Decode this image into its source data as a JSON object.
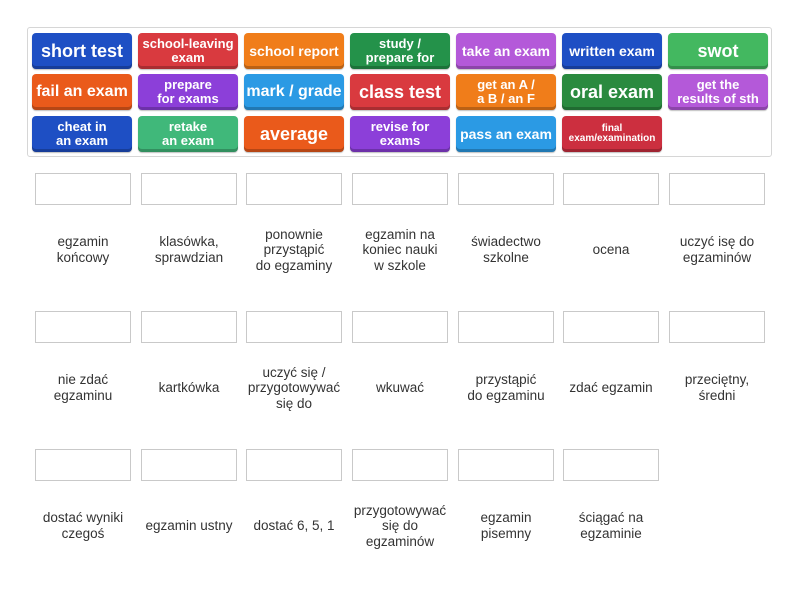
{
  "tiles": [
    {
      "label": "short test",
      "color": "#1e4fc4"
    },
    {
      "label": "school-leaving\nexam",
      "color": "#d93a3f"
    },
    {
      "label": "school report",
      "color": "#f07d1a"
    },
    {
      "label": "study /\nprepare for",
      "color": "#24924a"
    },
    {
      "label": "take an exam",
      "color": "#b459d9"
    },
    {
      "label": "written exam",
      "color": "#1e4fc4"
    },
    {
      "label": "swot",
      "color": "#43b860"
    },
    {
      "label": "fail an exam",
      "color": "#ea5a1b"
    },
    {
      "label": "prepare\nfor exams",
      "color": "#8c3fd9"
    },
    {
      "label": "mark / grade",
      "color": "#2b9ae4"
    },
    {
      "label": "class test",
      "color": "#d93a3f"
    },
    {
      "label": "get an A /\na B / an F",
      "color": "#f07d1a"
    },
    {
      "label": "oral exam",
      "color": "#2a8a3f"
    },
    {
      "label": "get the\nresults of sth",
      "color": "#b459d9"
    },
    {
      "label": "cheat in\nan exam",
      "color": "#1e4fc4"
    },
    {
      "label": "retake\nan exam",
      "color": "#40b87a"
    },
    {
      "label": "average",
      "color": "#ea5a1b"
    },
    {
      "label": "revise for\nexams",
      "color": "#8c3fd9"
    },
    {
      "label": "pass an exam",
      "color": "#2b9ae4"
    },
    {
      "label": "final\nexam/examination",
      "color": "#cc2f3f"
    }
  ],
  "definitions": [
    "egzamin\nkońcowy",
    "klasówka,\nsprawdzian",
    "ponownie\nprzystąpić\ndo egzaminy",
    "egzamin na\nkoniec nauki\nw szkole",
    "świadectwo\nszkolne",
    "ocena",
    "uczyć isę do\negzaminów",
    "nie zdać\negzaminu",
    "kartkówka",
    "uczyć się /\nprzygotowywać\nsię do",
    "wkuwać",
    "przystąpić\ndo egzaminu",
    "zdać egzamin",
    "przeciętny,\nśredni",
    "dostać wyniki\nczegoś",
    "egzamin ustny",
    "dostać 6, 5, 1",
    "przygotowywać\nsię do\negzaminów",
    "egzamin\npisemny",
    "ściągać na\negzaminie"
  ]
}
